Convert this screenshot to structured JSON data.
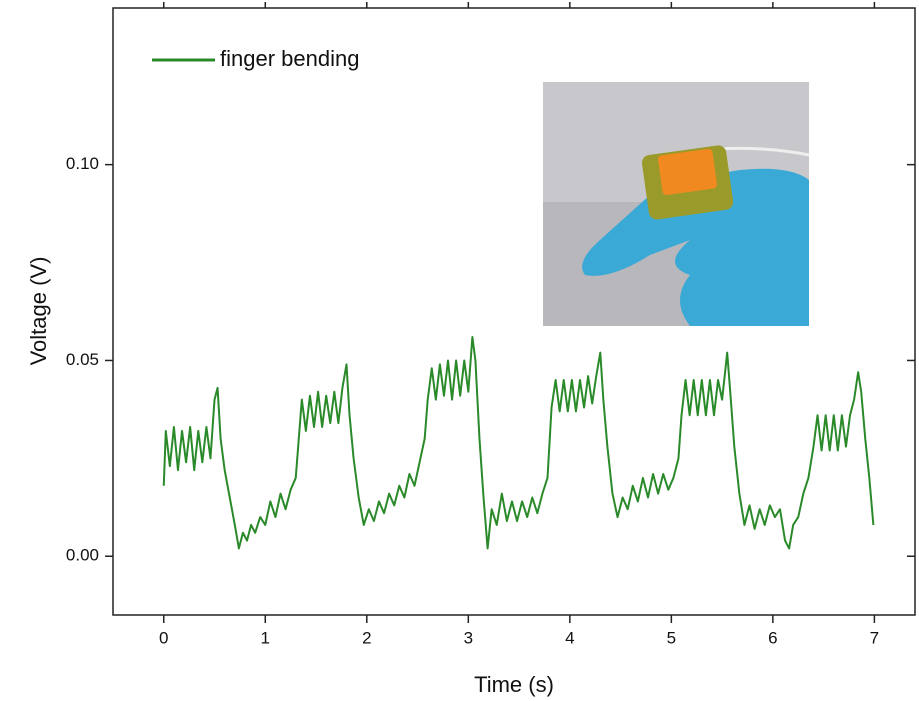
{
  "chart_data": {
    "type": "line",
    "x_label": "Time (s)",
    "y_label": "Voltage (V)",
    "xlim": [
      -0.5,
      7.4
    ],
    "ylim": [
      -0.015,
      0.14
    ],
    "xticks": [
      0,
      1,
      2,
      3,
      4,
      5,
      6,
      7
    ],
    "yticks": [
      {
        "value": 0,
        "label": "0.00"
      },
      {
        "value": 0.05,
        "label": "0.05"
      },
      {
        "value": 0.1,
        "label": "0.10"
      }
    ],
    "legend": "top-left",
    "series": [
      {
        "name": "finger bending",
        "color": "#2a8a2a",
        "x": [
          0,
          0.02,
          0.06,
          0.1,
          0.14,
          0.18,
          0.22,
          0.26,
          0.3,
          0.34,
          0.38,
          0.42,
          0.46,
          0.5,
          0.53,
          0.56,
          0.6,
          0.65,
          0.7,
          0.74,
          0.78,
          0.82,
          0.86,
          0.9,
          0.95,
          1.0,
          1.05,
          1.1,
          1.15,
          1.2,
          1.25,
          1.3,
          1.33,
          1.36,
          1.4,
          1.44,
          1.48,
          1.52,
          1.56,
          1.6,
          1.64,
          1.68,
          1.72,
          1.76,
          1.8,
          1.83,
          1.87,
          1.92,
          1.97,
          2.02,
          2.07,
          2.12,
          2.17,
          2.22,
          2.27,
          2.32,
          2.37,
          2.42,
          2.47,
          2.52,
          2.57,
          2.6,
          2.64,
          2.68,
          2.72,
          2.76,
          2.8,
          2.84,
          2.88,
          2.92,
          2.96,
          3.0,
          3.04,
          3.07,
          3.11,
          3.15,
          3.19,
          3.23,
          3.28,
          3.33,
          3.38,
          3.43,
          3.48,
          3.53,
          3.58,
          3.63,
          3.68,
          3.73,
          3.78,
          3.82,
          3.86,
          3.9,
          3.94,
          3.98,
          4.02,
          4.06,
          4.1,
          4.14,
          4.18,
          4.22,
          4.26,
          4.3,
          4.33,
          4.37,
          4.42,
          4.47,
          4.52,
          4.57,
          4.62,
          4.67,
          4.72,
          4.77,
          4.82,
          4.87,
          4.92,
          4.97,
          5.02,
          5.07,
          5.1,
          5.14,
          5.18,
          5.22,
          5.26,
          5.3,
          5.34,
          5.38,
          5.42,
          5.46,
          5.5,
          5.55,
          5.58,
          5.62,
          5.67,
          5.72,
          5.77,
          5.82,
          5.87,
          5.92,
          5.97,
          6.02,
          6.07,
          6.12,
          6.16,
          6.2,
          6.25,
          6.3,
          6.35,
          6.4,
          6.44,
          6.48,
          6.52,
          6.56,
          6.6,
          6.64,
          6.68,
          6.72,
          6.76,
          6.8,
          6.84,
          6.87,
          6.91,
          6.95,
          6.99
        ],
        "values": [
          0.018,
          0.032,
          0.023,
          0.033,
          0.022,
          0.032,
          0.024,
          0.033,
          0.022,
          0.032,
          0.024,
          0.033,
          0.025,
          0.04,
          0.043,
          0.03,
          0.022,
          0.015,
          0.008,
          0.002,
          0.006,
          0.004,
          0.008,
          0.006,
          0.01,
          0.008,
          0.014,
          0.01,
          0.016,
          0.012,
          0.017,
          0.02,
          0.03,
          0.04,
          0.032,
          0.041,
          0.033,
          0.042,
          0.033,
          0.041,
          0.034,
          0.042,
          0.034,
          0.043,
          0.049,
          0.036,
          0.025,
          0.015,
          0.008,
          0.012,
          0.009,
          0.014,
          0.011,
          0.016,
          0.013,
          0.018,
          0.015,
          0.021,
          0.018,
          0.024,
          0.03,
          0.04,
          0.048,
          0.04,
          0.049,
          0.041,
          0.05,
          0.04,
          0.05,
          0.041,
          0.05,
          0.042,
          0.056,
          0.05,
          0.03,
          0.015,
          0.002,
          0.012,
          0.008,
          0.016,
          0.009,
          0.014,
          0.009,
          0.014,
          0.01,
          0.015,
          0.011,
          0.016,
          0.02,
          0.038,
          0.045,
          0.037,
          0.045,
          0.037,
          0.045,
          0.037,
          0.045,
          0.038,
          0.046,
          0.039,
          0.046,
          0.052,
          0.04,
          0.028,
          0.016,
          0.01,
          0.015,
          0.012,
          0.018,
          0.014,
          0.02,
          0.015,
          0.021,
          0.016,
          0.021,
          0.017,
          0.02,
          0.025,
          0.036,
          0.045,
          0.036,
          0.045,
          0.036,
          0.045,
          0.036,
          0.045,
          0.036,
          0.045,
          0.04,
          0.052,
          0.042,
          0.028,
          0.016,
          0.008,
          0.013,
          0.007,
          0.012,
          0.008,
          0.013,
          0.01,
          0.012,
          0.004,
          0.002,
          0.008,
          0.01,
          0.016,
          0.02,
          0.028,
          0.036,
          0.027,
          0.036,
          0.027,
          0.036,
          0.027,
          0.036,
          0.028,
          0.036,
          0.04,
          0.047,
          0.042,
          0.03,
          0.02,
          0.008
        ]
      }
    ]
  }
}
